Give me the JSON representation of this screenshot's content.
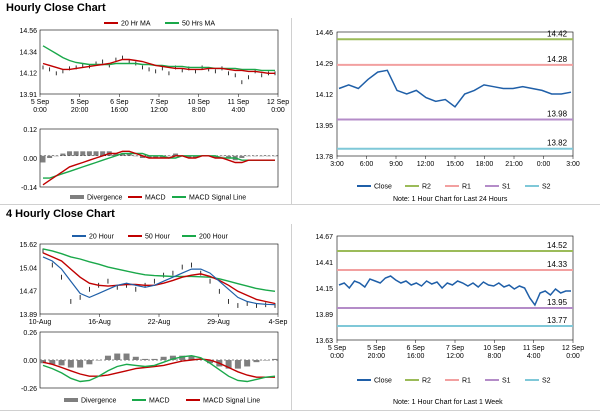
{
  "sections": {
    "hourly_title": "Hourly Close Chart",
    "four_hourly_title": "4 Hourly Close Chart"
  },
  "notes": {
    "hourly": "Note: 1 Hour Chart for Last 24 Hours",
    "weekly": "Note: 1 Hour Chart for Last 1 Week"
  },
  "colors": {
    "close": "#1f5fa8",
    "ma20": "#c00000",
    "ma50": "#1aa84a",
    "ma200": "#1aa84a",
    "macd": "#c00000",
    "signal": "#1aa84a",
    "divergence": "#7f7f7f",
    "r2": "#9bbb59",
    "r1": "#f2a0a0",
    "s1": "#b48cc8",
    "s2": "#7fc8d8",
    "price_bar": "#000000"
  },
  "chart_data": [
    {
      "id": "hourly_price",
      "type": "line",
      "legend": [
        "20 Hr MA",
        "50 Hrs MA"
      ],
      "x_ticks": [
        "5 Sep\n0:00",
        "5 Sep\n20:00",
        "6 Sep\n16:00",
        "7 Sep\n12:00",
        "10 Sep\n8:00",
        "11 Sep\n4:00",
        "12 Sep\n0:00"
      ],
      "ylim": [
        13.91,
        14.56
      ],
      "y_ticks": [
        "14.56",
        "14.34",
        "14.12",
        "13.91"
      ],
      "series": [
        {
          "name": "20 Hr MA",
          "values": [
            14.22,
            14.2,
            14.18,
            14.16,
            14.16,
            14.17,
            14.18,
            14.19,
            14.2,
            14.21,
            14.22,
            14.24,
            14.26,
            14.26,
            14.25,
            14.24,
            14.22,
            14.2,
            14.19,
            14.18,
            14.17,
            14.17,
            14.16,
            14.16,
            14.16,
            14.17,
            14.17,
            14.17,
            14.16,
            14.15,
            14.15,
            14.14,
            14.14,
            14.13,
            14.12,
            14.12
          ]
        },
        {
          "name": "50 Hrs MA",
          "values": [
            14.4,
            14.36,
            14.32,
            14.28,
            14.25,
            14.23,
            14.22,
            14.21,
            14.21,
            14.21,
            14.21,
            14.22,
            14.22,
            14.22,
            14.22,
            14.21,
            14.21,
            14.2,
            14.2,
            14.19,
            14.19,
            14.19,
            14.18,
            14.18,
            14.18,
            14.18,
            14.17,
            14.17,
            14.17,
            14.17,
            14.16,
            14.16,
            14.16,
            14.15,
            14.15,
            14.15
          ]
        },
        {
          "name": "close",
          "values": [
            14.18,
            14.16,
            14.12,
            14.14,
            14.17,
            14.18,
            14.2,
            14.19,
            14.22,
            14.24,
            14.2,
            14.26,
            14.28,
            14.24,
            14.22,
            14.18,
            14.16,
            14.14,
            14.17,
            14.12,
            14.18,
            14.15,
            14.17,
            14.14,
            14.18,
            14.16,
            14.14,
            14.17,
            14.12,
            14.1,
            14.03,
            14.08,
            14.14,
            14.1,
            14.12,
            14.12
          ]
        }
      ]
    },
    {
      "id": "hourly_macd",
      "type": "line",
      "legend": [
        "Divergence",
        "MACD",
        "MACD Signal Line"
      ],
      "ylim": [
        -0.14,
        0.12
      ],
      "y_ticks": [
        "0.12",
        "0.00",
        "-0.14"
      ],
      "series": [
        {
          "name": "MACD",
          "values": [
            -0.13,
            -0.11,
            -0.09,
            -0.07,
            -0.05,
            -0.04,
            -0.03,
            -0.02,
            -0.01,
            0.0,
            0.01,
            0.01,
            0.02,
            0.02,
            0.01,
            0.0,
            -0.01,
            -0.01,
            -0.01,
            -0.01,
            0.0,
            0.0,
            -0.01,
            -0.01,
            0.0,
            0.0,
            -0.01,
            -0.01,
            -0.02,
            -0.03,
            -0.03,
            -0.02,
            -0.02,
            -0.02,
            -0.02,
            -0.02
          ]
        },
        {
          "name": "MACD Signal Line",
          "values": [
            -0.1,
            -0.1,
            -0.09,
            -0.08,
            -0.07,
            -0.06,
            -0.05,
            -0.04,
            -0.03,
            -0.02,
            -0.01,
            0.0,
            0.01,
            0.01,
            0.01,
            0.01,
            0.0,
            0.0,
            0.0,
            -0.01,
            -0.01,
            0.0,
            0.0,
            0.0,
            0.0,
            0.0,
            0.0,
            -0.01,
            -0.01,
            -0.01,
            -0.02,
            -0.02,
            -0.02,
            -0.02,
            -0.02,
            -0.02
          ]
        },
        {
          "name": "Divergence",
          "values": [
            -0.03,
            -0.01,
            0.0,
            0.01,
            0.02,
            0.02,
            0.02,
            0.02,
            0.02,
            0.02,
            0.02,
            0.01,
            0.01,
            0.01,
            0.0,
            -0.01,
            -0.01,
            -0.01,
            -0.01,
            0.0,
            0.01,
            0.0,
            -0.01,
            -0.01,
            0.0,
            0.0,
            -0.01,
            0.0,
            -0.01,
            -0.02,
            -0.01,
            0.0,
            0.0,
            0.0,
            0.0,
            0.0
          ]
        }
      ]
    },
    {
      "id": "hourly_pivot",
      "type": "line",
      "legend": [
        "Close",
        "R2",
        "R1",
        "S1",
        "S2"
      ],
      "x_ticks": [
        "3:00",
        "6:00",
        "9:00",
        "12:00",
        "15:00",
        "18:00",
        "21:00",
        "0:00",
        "3:00"
      ],
      "ylim": [
        13.78,
        14.46
      ],
      "y_ticks": [
        "14.46",
        "14.29",
        "14.12",
        "13.95",
        "13.78"
      ],
      "levels": {
        "R2": 14.42,
        "R1": 14.28,
        "S1": 13.98,
        "S2": 13.82
      },
      "level_labels": {
        "R2": "14.42",
        "R1": "14.28",
        "S1": "13.98",
        "S2": "13.82"
      },
      "close": [
        14.15,
        14.17,
        14.15,
        14.2,
        14.24,
        14.25,
        14.14,
        14.12,
        14.14,
        14.1,
        14.08,
        14.09,
        14.05,
        14.12,
        14.14,
        14.17,
        14.16,
        14.15,
        14.15,
        14.16,
        14.15,
        14.14,
        14.12,
        14.12,
        14.13
      ]
    },
    {
      "id": "four_hourly_price",
      "type": "line",
      "legend": [
        "20 Hour",
        "50 Hour",
        "200 Hour"
      ],
      "x_ticks": [
        "10-Aug",
        "16-Aug",
        "22-Aug",
        "29-Aug",
        "4-Sep"
      ],
      "ylim": [
        13.89,
        15.62
      ],
      "y_ticks": [
        "15.62",
        "15.04",
        "14.47",
        "13.89"
      ],
      "series": [
        {
          "name": "20 Hour",
          "values": [
            15.3,
            15.2,
            15.0,
            14.7,
            14.4,
            14.3,
            14.4,
            14.5,
            14.6,
            14.65,
            14.6,
            14.55,
            14.6,
            14.7,
            14.8,
            14.9,
            15.0,
            15.0,
            14.9,
            14.7,
            14.5,
            14.3,
            14.2,
            14.15,
            14.13,
            14.12
          ]
        },
        {
          "name": "50 Hour",
          "values": [
            15.4,
            15.3,
            15.2,
            15.0,
            14.8,
            14.65,
            14.6,
            14.58,
            14.6,
            14.62,
            14.62,
            14.6,
            14.6,
            14.65,
            14.72,
            14.8,
            14.85,
            14.88,
            14.82,
            14.72,
            14.6,
            14.45,
            14.35,
            14.25,
            14.2,
            14.15
          ]
        },
        {
          "name": "200 Hour",
          "values": [
            15.5,
            15.45,
            15.38,
            15.3,
            15.25,
            15.18,
            15.12,
            15.05,
            15.0,
            14.95,
            14.9,
            14.86,
            14.84,
            14.83,
            14.82,
            14.82,
            14.82,
            14.81,
            14.8,
            14.76,
            14.7,
            14.64,
            14.58,
            14.52,
            14.48,
            14.45
          ]
        },
        {
          "name": "close",
          "values": [
            15.45,
            15.1,
            14.8,
            14.2,
            14.3,
            14.5,
            14.6,
            14.7,
            14.55,
            14.6,
            14.5,
            14.6,
            14.7,
            14.85,
            14.9,
            15.05,
            15.1,
            14.9,
            14.7,
            14.45,
            14.2,
            14.1,
            14.15,
            14.1,
            14.12,
            14.1
          ]
        }
      ]
    },
    {
      "id": "four_hourly_macd",
      "type": "line",
      "legend": [
        "Divergence",
        "MACD",
        "MACD Signal Line"
      ],
      "ylim": [
        -0.26,
        0.26
      ],
      "y_ticks": [
        "0.26",
        "0.00",
        "-0.26"
      ],
      "series": [
        {
          "name": "MACD",
          "values": [
            -0.05,
            -0.08,
            -0.12,
            -0.17,
            -0.2,
            -0.19,
            -0.15,
            -0.1,
            -0.06,
            -0.04,
            -0.05,
            -0.06,
            -0.05,
            -0.02,
            0.01,
            0.03,
            0.04,
            0.02,
            -0.03,
            -0.09,
            -0.15,
            -0.19,
            -0.2,
            -0.18,
            -0.16,
            -0.15
          ]
        },
        {
          "name": "MACD Signal Line",
          "values": [
            -0.02,
            -0.04,
            -0.07,
            -0.1,
            -0.13,
            -0.15,
            -0.15,
            -0.14,
            -0.12,
            -0.1,
            -0.08,
            -0.07,
            -0.06,
            -0.05,
            -0.03,
            -0.01,
            0.0,
            0.01,
            0.0,
            -0.03,
            -0.07,
            -0.11,
            -0.14,
            -0.16,
            -0.16,
            -0.16
          ]
        },
        {
          "name": "Divergence",
          "values": [
            -0.03,
            -0.04,
            -0.05,
            -0.07,
            -0.07,
            -0.04,
            0.0,
            0.04,
            0.06,
            0.06,
            0.03,
            0.01,
            0.01,
            0.03,
            0.04,
            0.04,
            0.04,
            0.01,
            -0.03,
            -0.06,
            -0.08,
            -0.08,
            -0.06,
            -0.02,
            0.0,
            0.01
          ]
        }
      ]
    },
    {
      "id": "weekly_pivot",
      "type": "line",
      "legend": [
        "Close",
        "R2",
        "R1",
        "S1",
        "S2"
      ],
      "x_ticks": [
        "5 Sep\n0:00",
        "5 Sep\n20:00",
        "6 Sep\n16:00",
        "7 Sep\n12:00",
        "10 Sep\n8:00",
        "11 Sep\n4:00",
        "12 Sep\n0:00"
      ],
      "ylim": [
        13.63,
        14.67
      ],
      "y_ticks": [
        "14.67",
        "14.41",
        "14.15",
        "13.89",
        "13.63"
      ],
      "levels": {
        "R2": 14.52,
        "R1": 14.33,
        "S1": 13.95,
        "S2": 13.77
      },
      "level_labels": {
        "R2": "14.52",
        "R1": "14.33",
        "S1": "13.95",
        "S2": "13.77"
      },
      "close": [
        14.18,
        14.2,
        14.15,
        14.22,
        14.2,
        14.16,
        14.24,
        14.22,
        14.2,
        14.25,
        14.27,
        14.23,
        14.2,
        14.22,
        14.18,
        14.2,
        14.17,
        14.22,
        14.19,
        14.21,
        14.15,
        14.2,
        14.18,
        14.22,
        14.2,
        14.17,
        14.2,
        14.16,
        14.21,
        14.18,
        14.17,
        14.2,
        14.16,
        14.18,
        14.14,
        14.17,
        14.15,
        14.05,
        13.98,
        14.1,
        14.12,
        14.08,
        14.14,
        14.1,
        14.12,
        14.12
      ]
    }
  ]
}
